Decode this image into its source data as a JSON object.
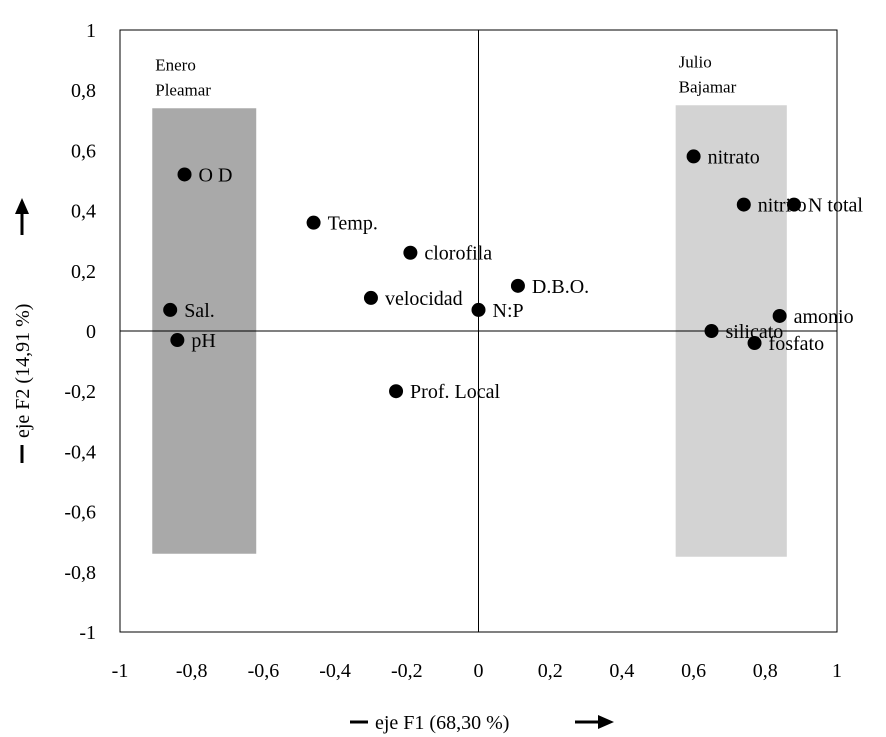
{
  "chart_data": {
    "type": "scatter",
    "title": "",
    "xlabel": "eje F1 (68,30 %)",
    "ylabel": "eje F2 (14,91 %)",
    "xlim": [
      -1,
      1
    ],
    "ylim": [
      -1,
      1
    ],
    "x_ticks": [
      "-1",
      "-0,8",
      "-0,6",
      "-0,4",
      "-0,2",
      "0",
      "0,2",
      "0,4",
      "0,6",
      "0,8",
      "1"
    ],
    "y_ticks": [
      "1",
      "0,8",
      "0,6",
      "0,4",
      "0,2",
      "0",
      "-0,2",
      "-0,4",
      "-0,6",
      "-0,8",
      "-1"
    ],
    "grid": false,
    "regions": [
      {
        "line1": "Enero",
        "line2": "Pleamar",
        "x_range": [
          -0.91,
          -0.62
        ],
        "y_range": [
          -0.74,
          0.74
        ],
        "color": "#a9a9a9"
      },
      {
        "line1": "Julio",
        "line2": "Bajamar",
        "x_range": [
          0.55,
          0.86
        ],
        "y_range": [
          -0.75,
          0.75
        ],
        "color": "#d3d3d3"
      }
    ],
    "points": [
      {
        "label": "O D",
        "x": -0.82,
        "y": 0.52
      },
      {
        "label": "Temp.",
        "x": -0.46,
        "y": 0.36
      },
      {
        "label": "clorofila",
        "x": -0.19,
        "y": 0.26
      },
      {
        "label": "velocidad",
        "x": -0.3,
        "y": 0.11
      },
      {
        "label": "D.B.O.",
        "x": 0.11,
        "y": 0.15
      },
      {
        "label": "N:P",
        "x": 0.0,
        "y": 0.07
      },
      {
        "label": "Sal.",
        "x": -0.86,
        "y": 0.07
      },
      {
        "label": "pH",
        "x": -0.84,
        "y": -0.03
      },
      {
        "label": "Prof. Local",
        "x": -0.23,
        "y": -0.2
      },
      {
        "label": "nitrato",
        "x": 0.6,
        "y": 0.58
      },
      {
        "label": "nitrito",
        "x": 0.74,
        "y": 0.42
      },
      {
        "label": "N total",
        "x": 0.88,
        "y": 0.42
      },
      {
        "label": "amonio",
        "x": 0.84,
        "y": 0.05
      },
      {
        "label": "silicato",
        "x": 0.65,
        "y": 0.0
      },
      {
        "label": "fosfato",
        "x": 0.77,
        "y": -0.04
      }
    ]
  }
}
